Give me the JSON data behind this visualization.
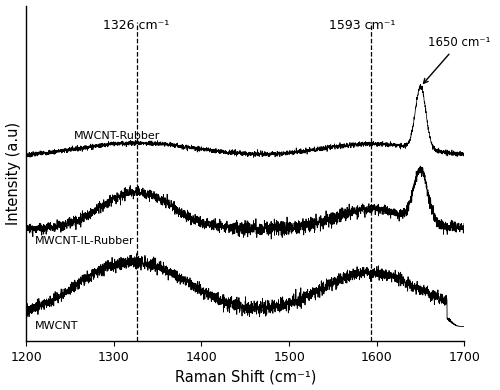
{
  "x_min": 1200,
  "x_max": 1700,
  "xlabel": "Raman Shift (cm⁻¹)",
  "ylabel": "Intensity (a.u)",
  "dline1": 1326,
  "dline2": 1593,
  "label1": "1326 cm⁻¹",
  "label2": "1593 cm⁻¹",
  "label3": "1650 cm⁻¹",
  "spectrum_labels": [
    "MWCNT-Rubber",
    "MWCNT-IL-Rubber",
    "MWCNT"
  ],
  "offsets": [
    0.58,
    0.3,
    0.0
  ],
  "line_color": "#000000",
  "bg_color": "#ffffff",
  "figsize": [
    5.0,
    3.9
  ],
  "dpi": 100
}
